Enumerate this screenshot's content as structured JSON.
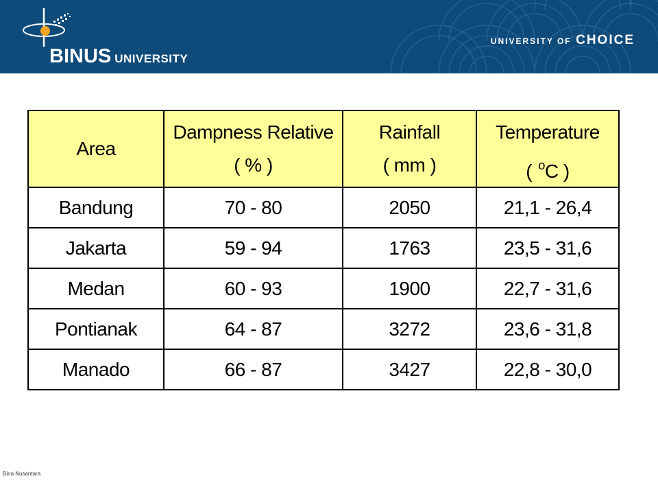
{
  "header": {
    "logo_main": "BINUS",
    "logo_sub": "UNIVERSITY",
    "tagline_prefix": "UNIVERSITY OF",
    "tagline_emphasis": "CHOICE",
    "banner_color": "#0e4a7a"
  },
  "table": {
    "header_bg": "#ffff99",
    "columns": [
      {
        "line1": "Area",
        "line2": ""
      },
      {
        "line1": "Dampness Relative",
        "line2": "( % )"
      },
      {
        "line1": "Rainfall",
        "line2": "( mm )"
      },
      {
        "line1": "Temperature",
        "line2_pre": "( ",
        "line2_sup": "o",
        "line2_post": "C )"
      }
    ],
    "rows": [
      [
        "Bandung",
        "70 - 80",
        "2050",
        "21,1 - 26,4"
      ],
      [
        "Jakarta",
        "59 - 94",
        "1763",
        "23,5 - 31,6"
      ],
      [
        "Medan",
        "60 - 93",
        "1900",
        "22,7 - 31,6"
      ],
      [
        "Pontianak",
        "64 - 87",
        "3272",
        "23,6 - 31,8"
      ],
      [
        "Manado",
        "66 - 87",
        "3427",
        "22,8 - 30,0"
      ]
    ]
  },
  "footer": {
    "text": "Bina Nusantara"
  }
}
